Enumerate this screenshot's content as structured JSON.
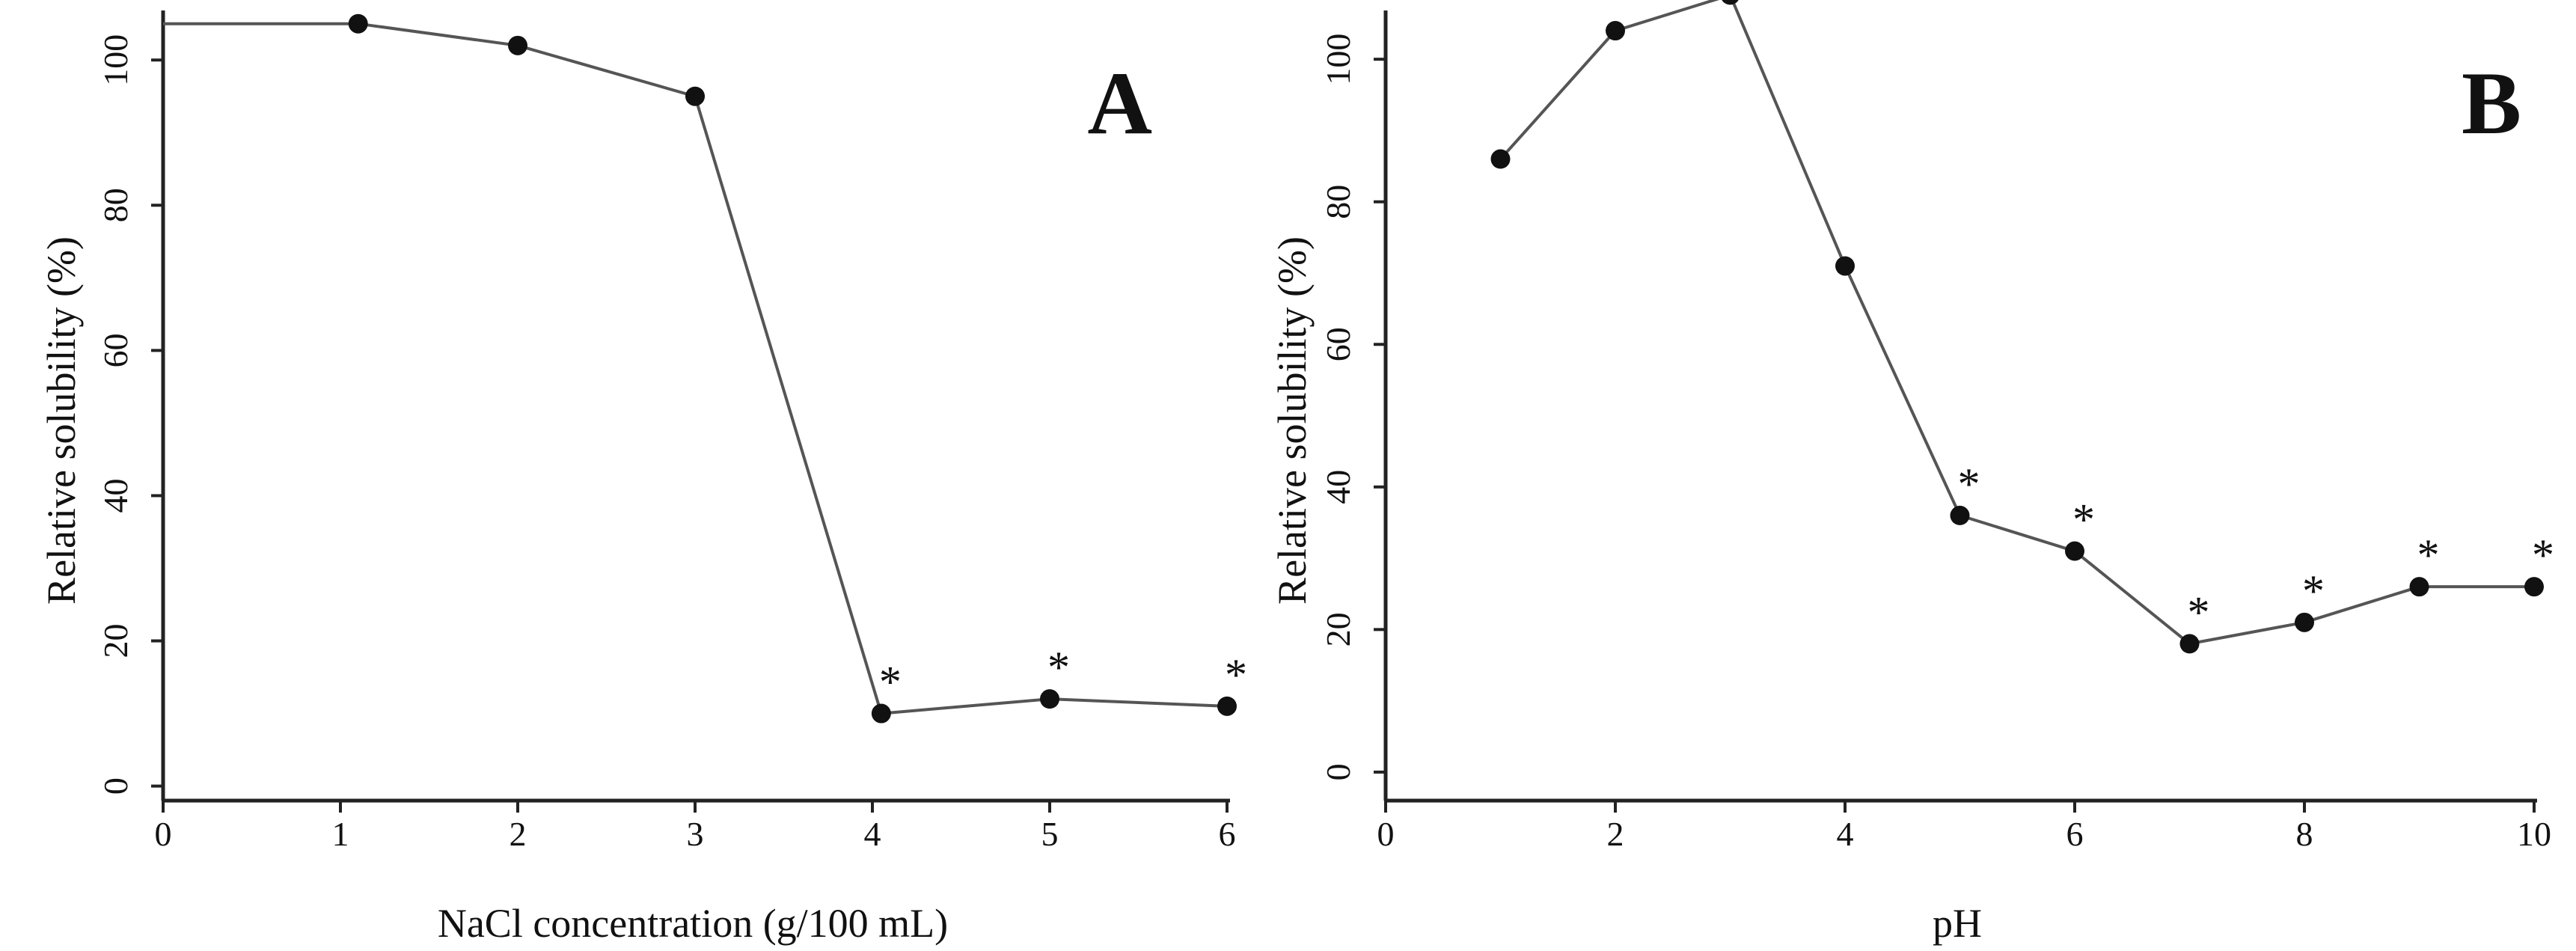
{
  "figure": {
    "panels": [
      "A",
      "B"
    ]
  },
  "colors": {
    "line": "#555555",
    "marker": "#111111",
    "axis": "#222222",
    "text": "#111111"
  },
  "chart_data": [
    {
      "type": "line",
      "panel_label": "A",
      "title": "",
      "xlabel": "NaCl concentration (g/100 mL)",
      "ylabel": "Relative solubility (%)",
      "xlim": [
        0,
        6
      ],
      "ylim": [
        -2,
        106
      ],
      "x_ticks": [
        0,
        1,
        2,
        3,
        4,
        5,
        6
      ],
      "x_tick_labels": [
        "0",
        "1",
        "2",
        "3",
        "4",
        "5",
        "6"
      ],
      "y_ticks": [
        0,
        20,
        40,
        60,
        80,
        100
      ],
      "y_tick_labels": [
        "0",
        "20",
        "40",
        "60",
        "80",
        "100"
      ],
      "grid": false,
      "series": [
        {
          "name": "Relative solubility",
          "x": [
            0,
            1.1,
            2,
            3,
            4.05,
            5,
            6
          ],
          "y": [
            105,
            105,
            102,
            95,
            10,
            12,
            11
          ],
          "markers": [
            false,
            true,
            true,
            true,
            true,
            true,
            true
          ],
          "annotations": [
            "",
            "",
            "",
            "",
            "*",
            "*",
            "*"
          ]
        }
      ]
    },
    {
      "type": "line",
      "panel_label": "B",
      "title": "",
      "xlabel": "pH",
      "ylabel": "Relative solubility (%)",
      "xlim": [
        0,
        10
      ],
      "ylim": [
        -4,
        106
      ],
      "x_ticks": [
        0,
        2,
        4,
        6,
        8,
        10
      ],
      "x_tick_labels": [
        "0",
        "2",
        "4",
        "6",
        "8",
        "10"
      ],
      "y_ticks": [
        0,
        20,
        40,
        60,
        80,
        100
      ],
      "y_tick_labels": [
        "0",
        "20",
        "40",
        "60",
        "80",
        "100"
      ],
      "grid": false,
      "series": [
        {
          "name": "Relative solubility",
          "x": [
            1,
            2,
            3,
            4,
            5,
            6,
            7,
            8,
            9,
            10
          ],
          "y": [
            86,
            104,
            109,
            71,
            36,
            31,
            18,
            21,
            26,
            26
          ],
          "markers": [
            true,
            true,
            true,
            true,
            true,
            true,
            true,
            true,
            true,
            true
          ],
          "annotations": [
            "",
            "",
            "",
            "",
            "*",
            "*",
            "*",
            "*",
            "*",
            "*"
          ]
        }
      ]
    }
  ]
}
